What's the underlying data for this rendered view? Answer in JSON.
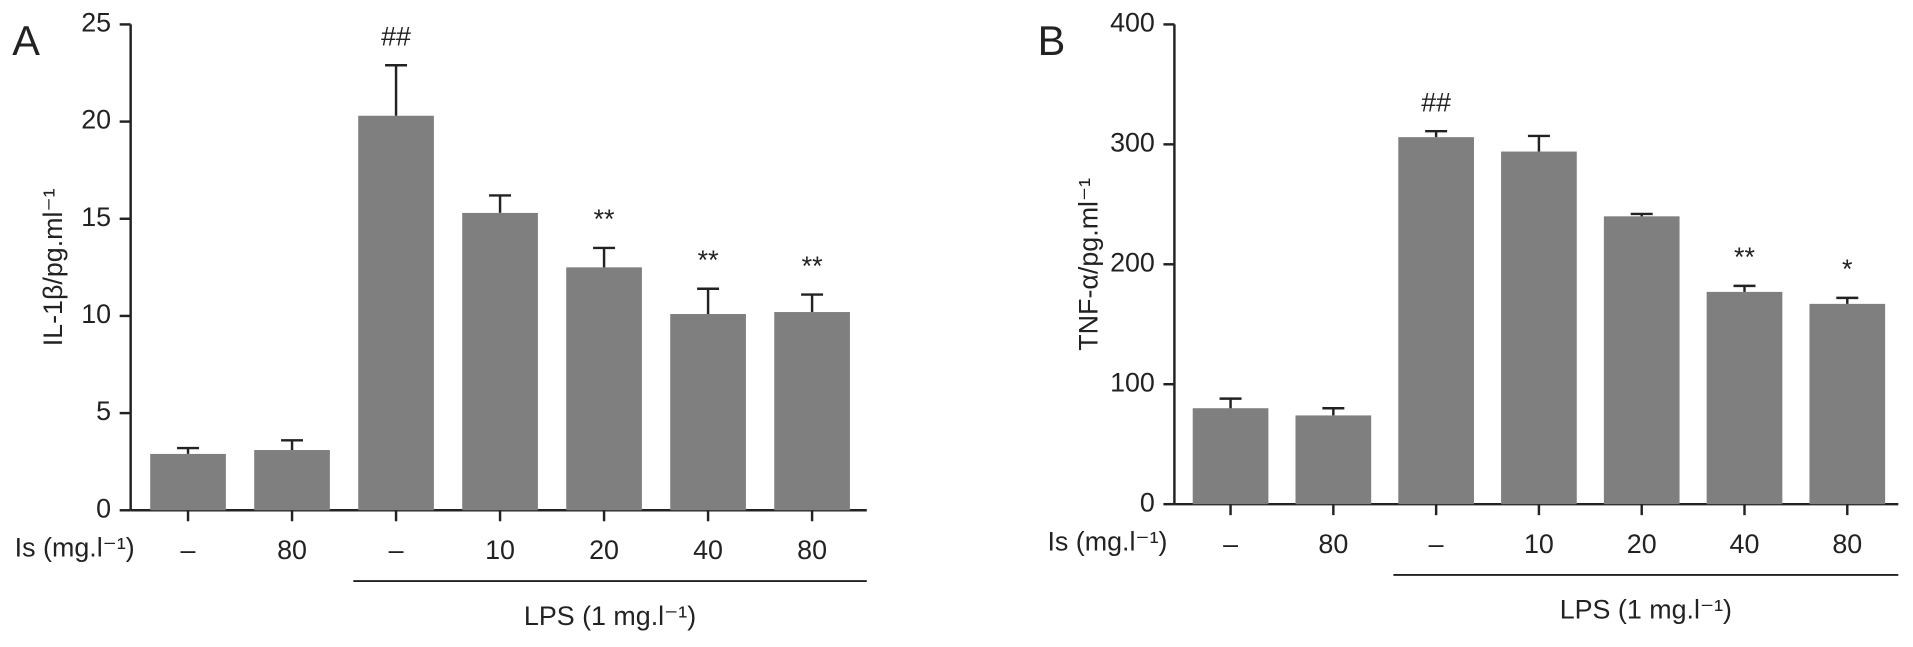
{
  "chart_data": [
    {
      "type": "bar",
      "panel": "A",
      "ylabel": "IL-1β/pg.ml⁻¹",
      "categories": [
        "–",
        "80",
        "–",
        "10",
        "20",
        "40",
        "80"
      ],
      "values": [
        2.9,
        3.1,
        20.3,
        15.3,
        12.5,
        10.1,
        10.2
      ],
      "errors": [
        0.3,
        0.5,
        2.6,
        0.9,
        1.0,
        1.3,
        0.9
      ],
      "annotations": [
        null,
        null,
        "##",
        null,
        "**",
        "**",
        "**"
      ],
      "row_label": "Is (mg.l⁻¹)",
      "group_label": "LPS (1 mg.l⁻¹)",
      "color": "#7f7f7f",
      "ylim": [
        0,
        25
      ],
      "yticks": [
        0,
        5,
        10,
        15,
        20,
        25
      ]
    },
    {
      "type": "bar",
      "panel": "B",
      "ylabel": "TNF-α/pg.ml⁻¹",
      "categories": [
        "–",
        "80",
        "–",
        "10",
        "20",
        "40",
        "80"
      ],
      "values": [
        80,
        74,
        306,
        294,
        240,
        177,
        167
      ],
      "errors": [
        8,
        6,
        5,
        13,
        2,
        5,
        5
      ],
      "annotations": [
        null,
        null,
        "##",
        null,
        null,
        "**",
        "*"
      ],
      "row_label": "Is (mg.l⁻¹)",
      "group_label": "LPS (1 mg.l⁻¹)",
      "color": "#7f7f7f",
      "ylim": [
        0,
        400
      ],
      "yticks": [
        0,
        100,
        200,
        300,
        400
      ]
    }
  ]
}
